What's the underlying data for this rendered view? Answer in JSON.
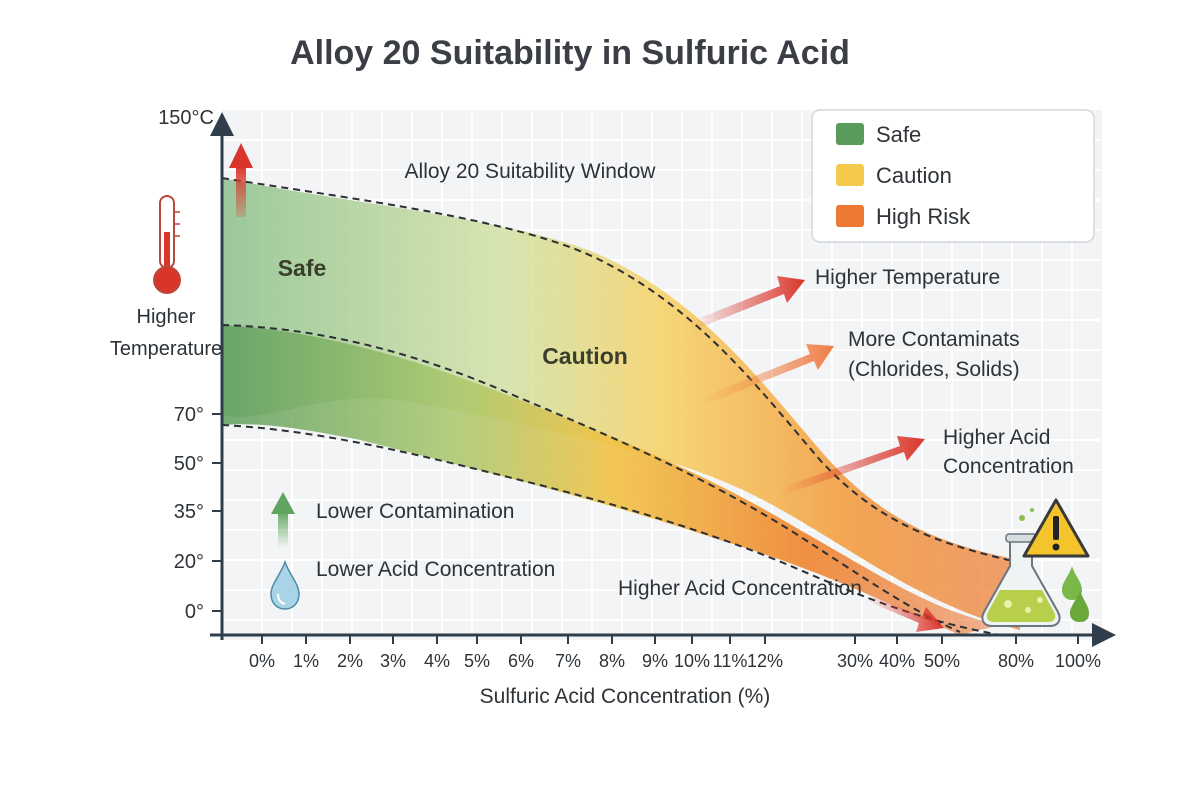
{
  "title": "Alloy 20 Suitability in Sulfuric Acid",
  "window_label": "Alloy 20 Suitability Window",
  "zones": {
    "safe": "Safe",
    "caution": "Caution"
  },
  "legend": [
    {
      "label": "Safe",
      "color": "#5a9a5a"
    },
    {
      "label": "Caution",
      "color": "#f5c94a"
    },
    {
      "label": "High Risk",
      "color": "#ec7a32"
    }
  ],
  "y_axis": {
    "top_label": "150°C",
    "label_line1": "Higher",
    "label_line2": "Temperature",
    "ticks": [
      "70°",
      "50°",
      "35°",
      "20°",
      "0°"
    ]
  },
  "x_axis": {
    "label": "Sulfuric Acid Concentration (%)",
    "ticks": [
      "0%",
      "1%",
      "2%",
      "3%",
      "4%",
      "5%",
      "6%",
      "7%",
      "8%",
      "9%",
      "10%",
      "11%",
      "12%",
      "30%",
      "40%",
      "50%",
      "80%",
      "100%"
    ]
  },
  "annotations": {
    "higher_temperature": "Higher Temperature",
    "contaminants_line1": "More Contaminats",
    "contaminants_line2": "(Chlorides, Solids)",
    "acid_line1": "Higher Acid",
    "acid_line2": "Concentration",
    "higher_acid_bottom": "Higher Acid Concentration",
    "lower_contamination": "Lower Contamination",
    "lower_acid": "Lower Acid Concentration"
  },
  "icons": {
    "thermometer": "thermometer-icon",
    "droplet": "water-drop-icon",
    "flask": "chemical-flask-icon",
    "warning": "warning-triangle-icon"
  },
  "colors": {
    "safe": "#5a9a5a",
    "caution": "#f5c94a",
    "high_risk": "#ec7a32",
    "arrow_red": "#d9352b",
    "arrow_green": "#5fa45f"
  }
}
